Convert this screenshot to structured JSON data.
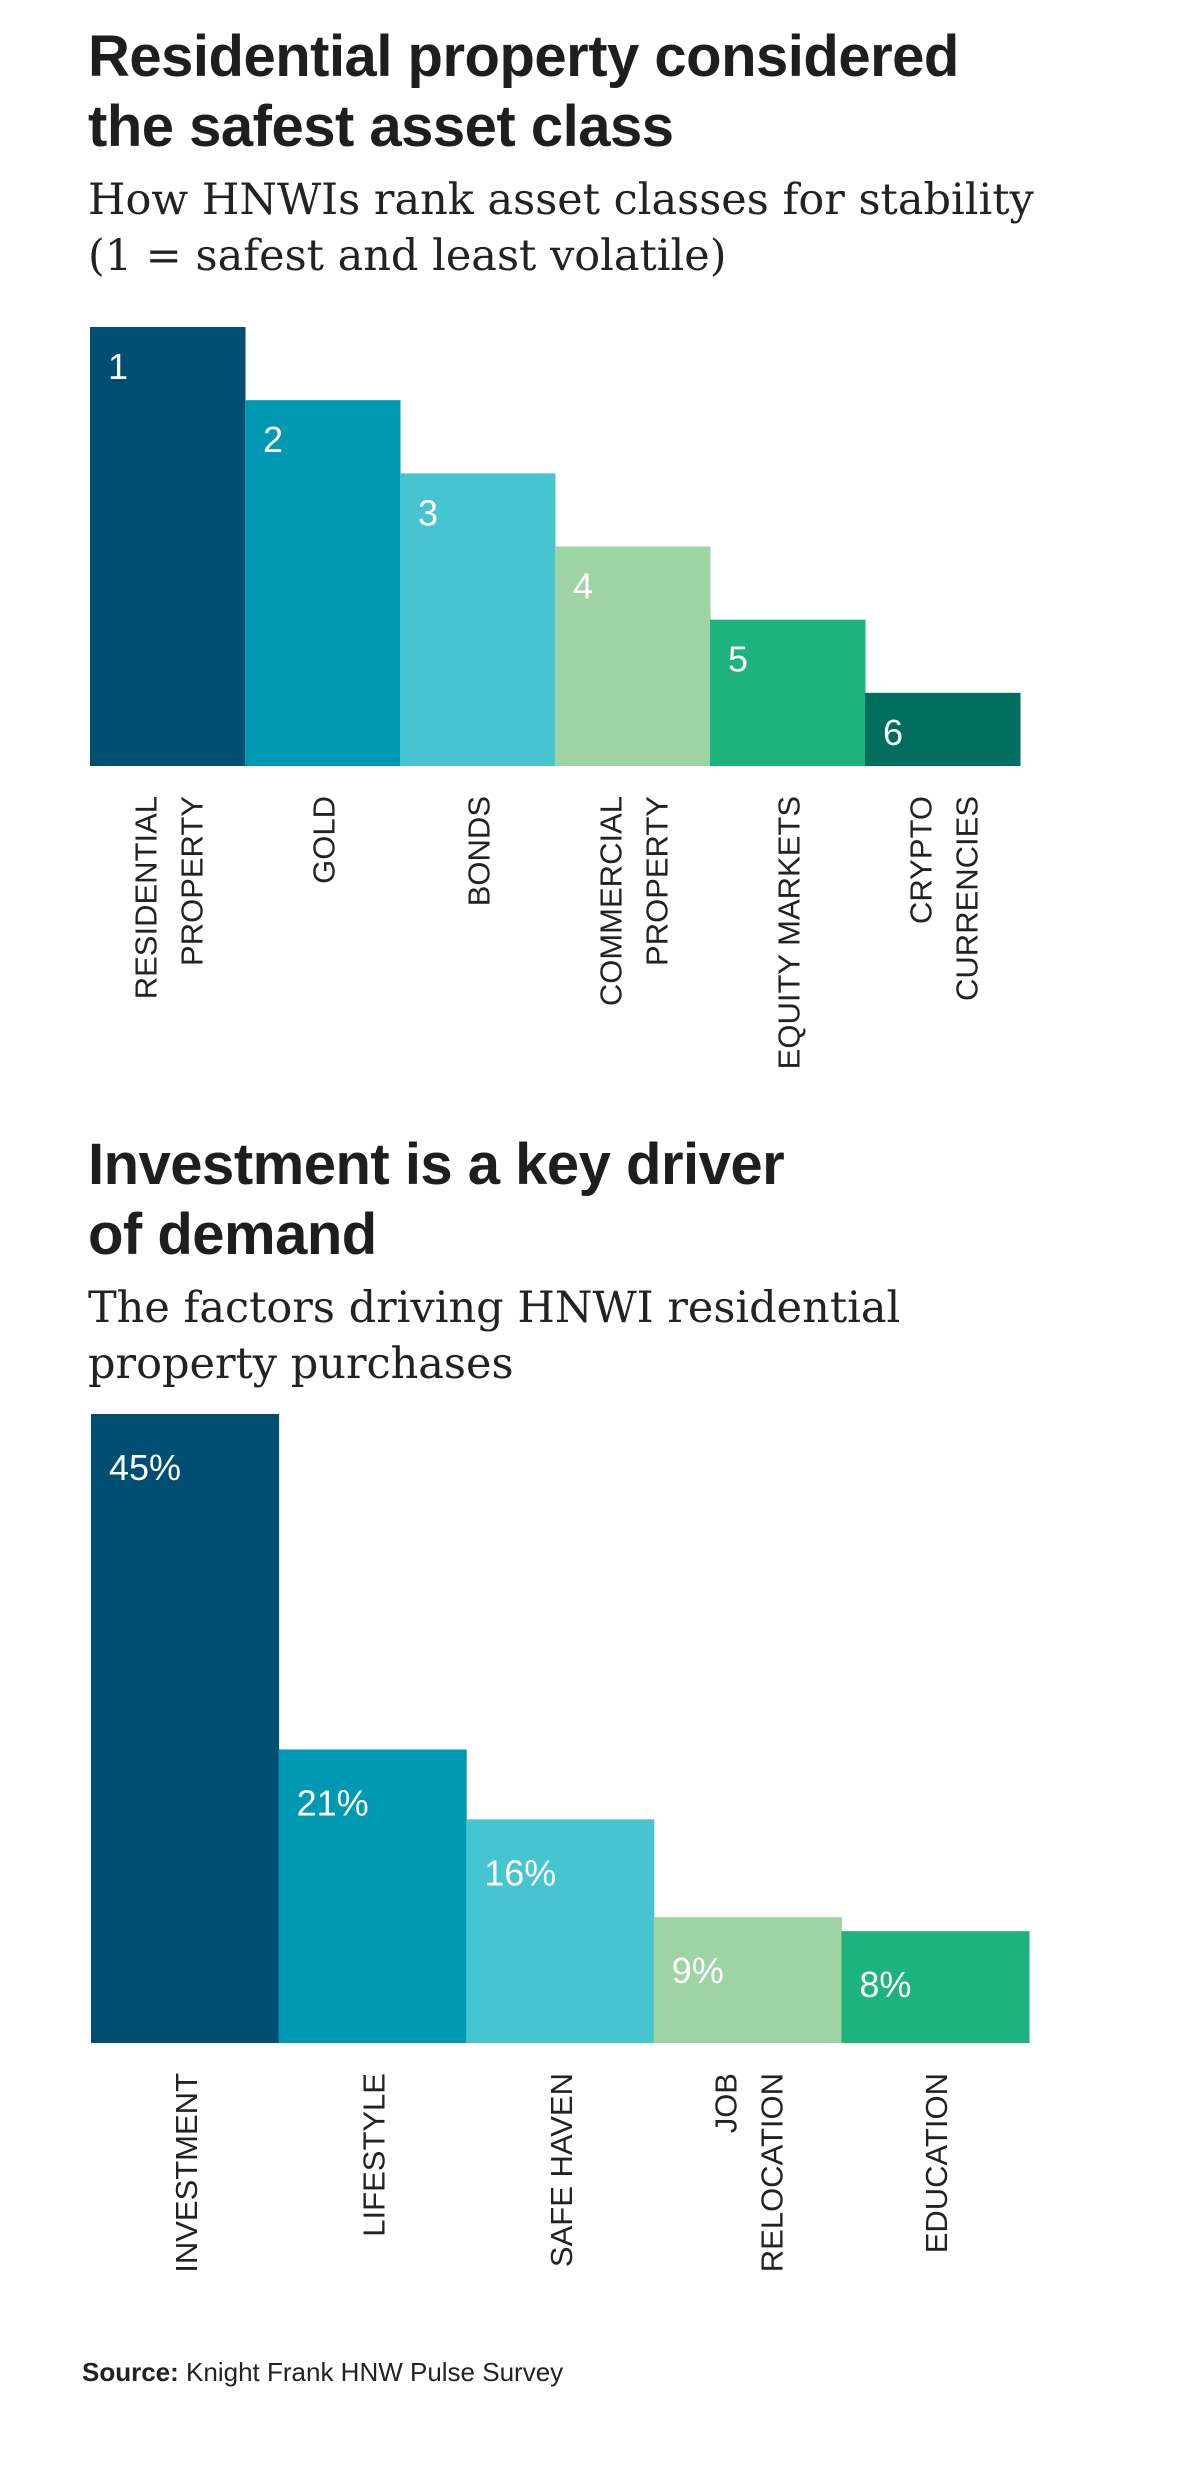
{
  "chart_data": [
    {
      "type": "bar",
      "title_lines": [
        "Residential property considered",
        "the safest asset class"
      ],
      "subtitle": "How HNWIs rank asset classes for stability\n (1 = safest and least volatile)",
      "categories": [
        [
          "RESIDENTIAL",
          "PROPERTY"
        ],
        [
          "GOLD"
        ],
        [
          "BONDS"
        ],
        [
          "COMMERCIAL",
          "PROPERTY"
        ],
        [
          "EQUITY MARKETS"
        ],
        [
          "CRYPTO",
          "CURRENCIES"
        ]
      ],
      "values": [
        1,
        2,
        3,
        4,
        5,
        6
      ],
      "value_labels": [
        "1",
        "2",
        "3",
        "4",
        "5",
        "6"
      ],
      "scale_max": 7,
      "colors": [
        "#004f72",
        "#0099b4",
        "#46c4d0",
        "#9ed4a4",
        "#1db37d",
        "#006e5d"
      ],
      "xlabel": "",
      "ylabel": ""
    },
    {
      "type": "bar",
      "title_lines": [
        "Investment is a key driver",
        "of demand"
      ],
      "subtitle": "The factors driving HNWI residential\nproperty purchases",
      "categories": [
        [
          "INVESTMENT"
        ],
        [
          "LIFESTYLE"
        ],
        [
          "SAFE HAVEN"
        ],
        [
          "JOB",
          "RELOCATION"
        ],
        [
          "EDUCATION"
        ]
      ],
      "values": [
        45,
        21,
        16,
        9,
        8
      ],
      "value_labels": [
        "45%",
        "21%",
        "16%",
        "9%",
        "8%"
      ],
      "ylim": [
        0,
        45
      ],
      "colors": [
        "#004f72",
        "#0099b4",
        "#46c4d0",
        "#9ed4a4",
        "#1db37d"
      ],
      "xlabel": "",
      "ylabel": ""
    }
  ],
  "source": {
    "label": "Source:",
    "text": " Knight Frank HNW Pulse Survey"
  }
}
